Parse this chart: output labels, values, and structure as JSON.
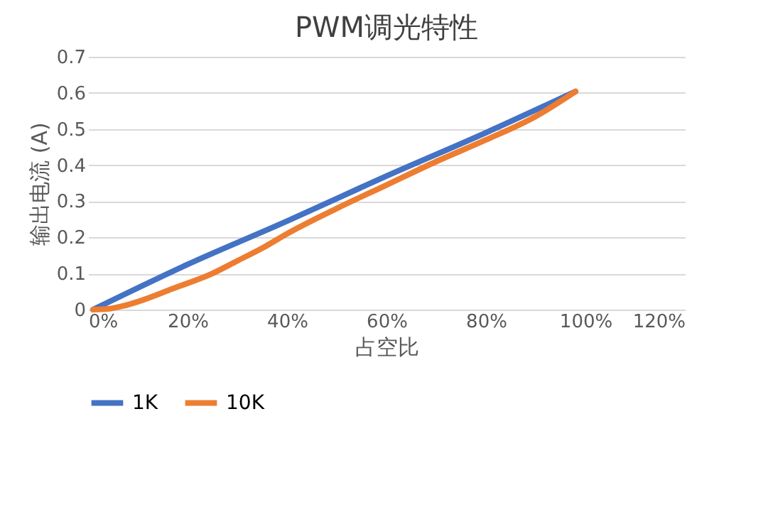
{
  "chart_data": {
    "type": "line",
    "title": "PWM调光特性",
    "xlabel": "占空比",
    "ylabel": "输出电流 (A)",
    "xlim": [
      0,
      120
    ],
    "xticks": [
      {
        "value": 0,
        "label": "0%"
      },
      {
        "value": 20,
        "label": "20%"
      },
      {
        "value": 40,
        "label": "40%"
      },
      {
        "value": 60,
        "label": "60%"
      },
      {
        "value": 80,
        "label": "80%"
      },
      {
        "value": 100,
        "label": "100%"
      },
      {
        "value": 120,
        "label": "120%"
      }
    ],
    "ylim": [
      0,
      0.7
    ],
    "yticks": [
      0,
      0.1,
      0.2,
      0.3,
      0.4,
      0.5,
      0.6,
      0.7
    ],
    "grid": "y",
    "legend": "bottom",
    "marker": "none",
    "line_style": "solid",
    "series": [
      {
        "name": "1K",
        "color": "#4472c4",
        "x": [
          1,
          20,
          40,
          60,
          80,
          98
        ],
        "values": [
          0,
          0.125,
          0.245,
          0.37,
          0.49,
          0.604
        ]
      },
      {
        "name": "10K",
        "color": "#ed7d31",
        "x": [
          1,
          4,
          7,
          10,
          17,
          25,
          30,
          35,
          40,
          50,
          60,
          70,
          80,
          90,
          98
        ],
        "values": [
          0,
          0.002,
          0.01,
          0.022,
          0.058,
          0.1,
          0.135,
          0.17,
          0.21,
          0.28,
          0.345,
          0.41,
          0.47,
          0.535,
          0.604
        ]
      }
    ]
  }
}
